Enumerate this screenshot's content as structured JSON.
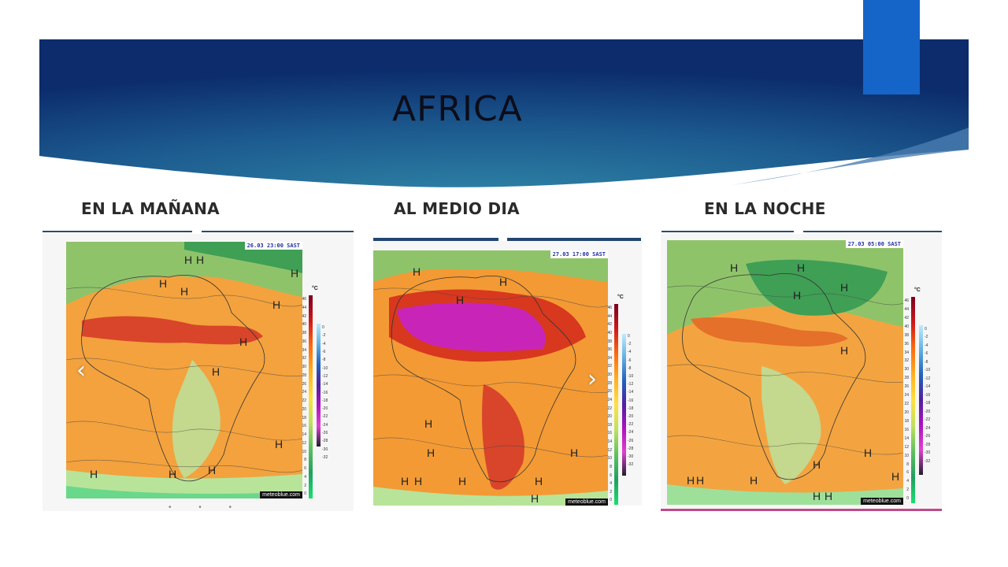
{
  "slide": {
    "title": "AFRICA",
    "accent_color": "#1565c8",
    "banner_colors": [
      "#12417a",
      "#2b7aa0",
      "#0b2a6a"
    ]
  },
  "panels": [
    {
      "label": "EN LA MAÑANA",
      "timestamp": "26.03  23:00 SAST",
      "brand": "meteoblue.com",
      "unit": "°C",
      "nav": "prev",
      "nav_icon": "chevron-left-icon",
      "pressure_labels": [
        "1024",
        "1018",
        "1012",
        "1012",
        "1012",
        "1018",
        "1012",
        "1012",
        "1012",
        "1018",
        "1018",
        "1012",
        "1024"
      ]
    },
    {
      "label": "AL MEDIO DIA",
      "timestamp": "27.03  17:00 SAST",
      "brand": "meteoblue.com",
      "unit": "°C",
      "nav": "next",
      "nav_icon": "chevron-right-icon",
      "pressure_labels": [
        "1024",
        "1012",
        "1008",
        "1006",
        "1006",
        "1006",
        "1012",
        "1012",
        "1018",
        "1013",
        "1024",
        "1012",
        "1018"
      ]
    },
    {
      "label": "EN LA NOCHE",
      "timestamp": "27.03  05:00 SAST",
      "brand": "meteoblue.com",
      "unit": "°C",
      "pressure_labels": [
        "1024",
        "1018",
        "1012",
        "1012",
        "1018",
        "1012",
        "1012",
        "1012",
        "1024",
        "1012",
        "1018"
      ]
    }
  ],
  "legend": {
    "left_ticks": [
      "46",
      "44",
      "42",
      "40",
      "38",
      "36",
      "34",
      "32",
      "30",
      "28",
      "26",
      "24",
      "22",
      "20",
      "18",
      "16",
      "14",
      "12",
      "10",
      "8",
      "6",
      "4",
      "2",
      "0"
    ],
    "right_ticks": [
      "0",
      "-2",
      "-4",
      "-6",
      "-8",
      "-10",
      "-12",
      "-14",
      "-16",
      "-18",
      "-20",
      "-22",
      "-24",
      "-26",
      "-28",
      "-30",
      "-32"
    ]
  },
  "pagination": "• • •"
}
